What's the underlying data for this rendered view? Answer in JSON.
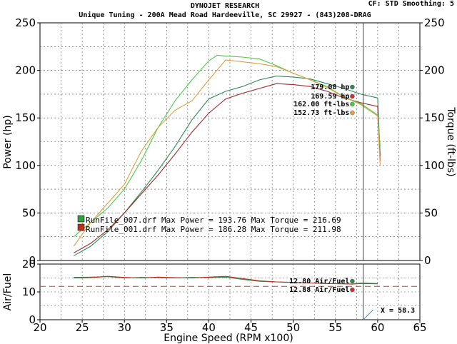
{
  "header": {
    "title": "DYNOJET RESEARCH",
    "subtitle": "Unique Tuning - 200A Mead Road Hardeeville, SC 29927 - (843)208-DRAG",
    "settings": "CF: STD  Smoothing: 5"
  },
  "chart_data": [
    {
      "type": "line",
      "ylabel": "Power (hp)",
      "y2label": "Torque (ft-lbs)",
      "xlim": [
        20,
        65
      ],
      "ylim": [
        0,
        250
      ],
      "y2lim": [
        0,
        250
      ],
      "xticks": [
        "20",
        "25",
        "30",
        "35",
        "40",
        "45",
        "50",
        "55",
        "60",
        "65"
      ],
      "yticks": [
        "0",
        "50",
        "100",
        "150",
        "200",
        "250"
      ],
      "y2ticks": [
        "0",
        "50",
        "100",
        "150",
        "200",
        "250"
      ],
      "grid": true,
      "cursor_x": 58.3,
      "series": [
        {
          "key": "power_007",
          "color": "#2e8b57",
          "x": [
            24,
            26,
            28,
            30,
            32,
            34,
            36,
            38,
            40,
            42,
            44,
            46,
            48,
            50,
            52,
            54,
            56,
            58,
            60,
            60.3
          ],
          "y": [
            5,
            15,
            30,
            50,
            72,
            95,
            120,
            148,
            170,
            178,
            183,
            190,
            194,
            193,
            191,
            186,
            181,
            175,
            171,
            110
          ]
        },
        {
          "key": "power_001",
          "color": "#a02828",
          "x": [
            24,
            26,
            28,
            30,
            32,
            34,
            36,
            38,
            40,
            42,
            44,
            46,
            48,
            50,
            52,
            54,
            56,
            58,
            60,
            60.3
          ],
          "y": [
            8,
            18,
            32,
            50,
            70,
            90,
            112,
            135,
            155,
            170,
            176,
            181,
            186,
            185,
            183,
            178,
            171,
            166,
            162,
            105
          ]
        },
        {
          "key": "torque_007",
          "color": "#4ec94e",
          "x": [
            24,
            26,
            28,
            30,
            32,
            34,
            36,
            38,
            40,
            41,
            42,
            44,
            46,
            48,
            50,
            52,
            54,
            56,
            58,
            60,
            60.3
          ],
          "y": [
            25,
            40,
            55,
            75,
            105,
            140,
            168,
            190,
            210,
            216,
            215,
            214,
            212,
            205,
            197,
            190,
            183,
            172,
            165,
            153,
            120
          ]
        },
        {
          "key": "torque_001",
          "color": "#e0a040",
          "x": [
            24,
            26,
            28,
            30,
            32,
            34,
            36,
            38,
            40,
            42,
            44,
            46,
            48,
            50,
            52,
            54,
            56,
            58,
            60,
            60.3
          ],
          "y": [
            15,
            40,
            60,
            80,
            115,
            140,
            158,
            168,
            190,
            211,
            209,
            207,
            204,
            197,
            190,
            182,
            172,
            164,
            152,
            100
          ]
        }
      ],
      "annotations": [
        {
          "text": "179.08 hp",
          "value": 179.08,
          "color": "#2e8b57"
        },
        {
          "text": "169.59 hp",
          "value": 169.59,
          "color": "#cc3333"
        },
        {
          "text": "162.00 ft-lbs",
          "value": 162.0,
          "color": "#4ec94e"
        },
        {
          "text": "152.73 ft-lbs",
          "value": 152.73,
          "color": "#e8a040"
        }
      ],
      "annotation_x": 57,
      "legend": [
        {
          "text": "RunFile_007.drf Max Power = 193.76   Max Torque = 216.69",
          "color": "#2e9e3e"
        },
        {
          "text": "RunFile_001.drf Max Power = 186.28   Max Torque = 211.98",
          "color": "#c03020"
        }
      ]
    },
    {
      "type": "line",
      "ylabel": "Air/Fuel",
      "xlabel": "Engine Speed (RPM x100)",
      "xlim": [
        20,
        65
      ],
      "ylim": [
        0,
        20
      ],
      "yticks": [
        "0",
        "10",
        "20"
      ],
      "ref_line": 12,
      "ref_color": "#b84040",
      "series": [
        {
          "key": "afr_007",
          "color": "#2e8b57",
          "x": [
            24,
            26,
            28,
            30,
            32,
            34,
            36,
            38,
            40,
            42,
            44,
            46,
            48,
            50,
            52,
            54,
            56,
            57,
            58,
            60
          ],
          "y": [
            15.2,
            15.3,
            15.5,
            15.0,
            15.2,
            15.1,
            15.0,
            15.2,
            15.1,
            15.3,
            14.5,
            13.8,
            13.6,
            13.4,
            13.2,
            13.0,
            12.9,
            12.8,
            13.2,
            13.0
          ]
        },
        {
          "key": "afr_001",
          "color": "#c03020",
          "x": [
            24,
            26,
            28,
            30,
            32,
            34,
            36,
            38,
            40,
            42,
            44,
            46,
            48,
            50,
            52,
            54,
            56,
            57,
            58,
            60
          ],
          "y": [
            15.0,
            15.1,
            15.6,
            15.2,
            15.0,
            15.3,
            15.1,
            15.0,
            15.3,
            15.6,
            14.8,
            14.0,
            13.6,
            13.4,
            13.2,
            13.0,
            12.9,
            12.8,
            13.0,
            12.9
          ]
        }
      ],
      "annotations": [
        {
          "text": "12.80 Air/Fuel",
          "value": 12.8,
          "color": "#2e8b57"
        },
        {
          "text": "12.88 Air/Fuel",
          "value": 12.88,
          "color": "#cc3333"
        }
      ],
      "cursor_label": "X = 58.3"
    }
  ]
}
